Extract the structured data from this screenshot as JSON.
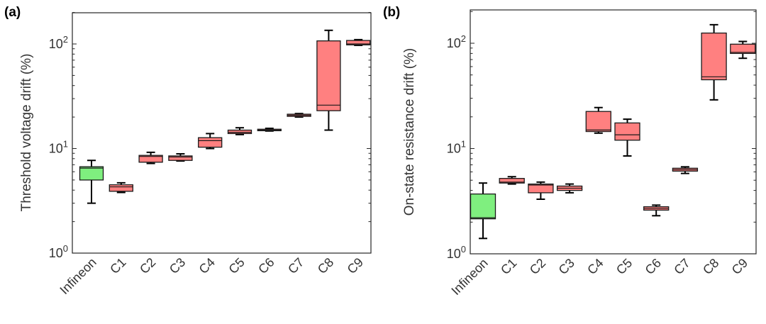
{
  "chart_data": [
    {
      "type": "box",
      "panel": "(a)",
      "ylabel": "Threshold voltage drift (%)",
      "yscale": "log",
      "ylim": [
        1,
        200
      ],
      "yticks": [
        {
          "base": "10",
          "exp": "0"
        },
        {
          "base": "10",
          "exp": "1"
        },
        {
          "base": "10",
          "exp": "2"
        }
      ],
      "categories": [
        "Infineon",
        "C1",
        "C2",
        "C3",
        "C4",
        "C5",
        "C6",
        "C7",
        "C8",
        "C9"
      ],
      "box_colors": [
        "#7fef7f",
        "#ff8080",
        "#ff8080",
        "#ff8080",
        "#ff8080",
        "#ff8080",
        "#ff8080",
        "#ff8080",
        "#ff8080",
        "#ff8080"
      ],
      "boxes": [
        {
          "min": 3.0,
          "q1": 5.0,
          "median": 6.5,
          "q3": 6.7,
          "max": 7.7
        },
        {
          "min": 3.8,
          "q1": 3.9,
          "median": 4.3,
          "q3": 4.5,
          "max": 4.7
        },
        {
          "min": 7.2,
          "q1": 7.4,
          "median": 8.4,
          "q3": 8.6,
          "max": 9.2
        },
        {
          "min": 7.6,
          "q1": 7.7,
          "median": 8.3,
          "q3": 8.5,
          "max": 8.9
        },
        {
          "min": 10.0,
          "q1": 10.3,
          "median": 11.9,
          "q3": 12.7,
          "max": 13.9
        },
        {
          "min": 13.6,
          "q1": 13.9,
          "median": 14.3,
          "q3": 15.0,
          "max": 15.8
        },
        {
          "min": 14.7,
          "q1": 14.8,
          "median": 15.0,
          "q3": 15.3,
          "max": 15.6
        },
        {
          "min": 20.0,
          "q1": 20.3,
          "median": 20.8,
          "q3": 21.3,
          "max": 21.6
        },
        {
          "min": 15.0,
          "q1": 23.0,
          "median": 26.0,
          "q3": 107.0,
          "max": 135.0
        },
        {
          "min": 97.0,
          "q1": 98.0,
          "median": 100.0,
          "q3": 108.0,
          "max": 110.0
        }
      ]
    },
    {
      "type": "box",
      "panel": "(b)",
      "ylabel": "On-state resistance drift (%)",
      "yscale": "log",
      "ylim": [
        1,
        200
      ],
      "yticks": [
        {
          "base": "10",
          "exp": "0"
        },
        {
          "base": "10",
          "exp": "1"
        },
        {
          "base": "10",
          "exp": "2"
        }
      ],
      "categories": [
        "Infineon",
        "C1",
        "C2",
        "C3",
        "C4",
        "C5",
        "C6",
        "C7",
        "C8",
        "C9"
      ],
      "box_colors": [
        "#7fef7f",
        "#ff8080",
        "#ff8080",
        "#ff8080",
        "#ff8080",
        "#ff8080",
        "#ff8080",
        "#ff8080",
        "#ff8080",
        "#ff8080"
      ],
      "boxes": [
        {
          "min": 1.4,
          "q1": 2.15,
          "median": 2.2,
          "q3": 3.7,
          "max": 4.7
        },
        {
          "min": 4.6,
          "q1": 4.7,
          "median": 4.8,
          "q3": 5.2,
          "max": 5.4
        },
        {
          "min": 3.3,
          "q1": 3.8,
          "median": 4.5,
          "q3": 4.6,
          "max": 4.8
        },
        {
          "min": 3.8,
          "q1": 4.0,
          "median": 4.2,
          "q3": 4.4,
          "max": 4.6
        },
        {
          "min": 14.0,
          "q1": 14.5,
          "median": 15.0,
          "q3": 22.5,
          "max": 24.5
        },
        {
          "min": 8.5,
          "q1": 12.0,
          "median": 13.5,
          "q3": 17.5,
          "max": 19.0
        },
        {
          "min": 2.3,
          "q1": 2.6,
          "median": 2.7,
          "q3": 2.8,
          "max": 2.9
        },
        {
          "min": 5.8,
          "q1": 6.1,
          "median": 6.3,
          "q3": 6.5,
          "max": 6.7
        },
        {
          "min": 29.0,
          "q1": 45.0,
          "median": 48.0,
          "q3": 125.0,
          "max": 150.0
        },
        {
          "min": 72.0,
          "q1": 80.0,
          "median": 82.0,
          "q3": 98.0,
          "max": 104.0
        }
      ]
    }
  ]
}
